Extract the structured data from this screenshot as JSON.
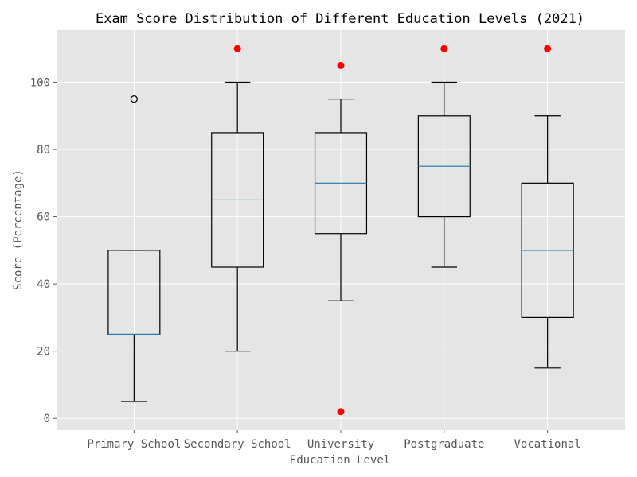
{
  "chart_data": {
    "type": "box",
    "title": "Exam Score Distribution of Different Education Levels (2021)",
    "xlabel": "Education Level",
    "ylabel": "Score (Percentage)",
    "ylim": [
      -3.5,
      115.5
    ],
    "yticks": [
      0,
      20,
      40,
      60,
      80,
      100
    ],
    "grid": true,
    "colors": {
      "plot_bg": "#e5e5e5",
      "grid": "#ffffff",
      "box": "#000000",
      "median": "#1f77b4",
      "outlier_red": "#ff0000"
    },
    "categories": [
      "Primary School",
      "Secondary School",
      "University",
      "Postgraduate",
      "Vocational"
    ],
    "boxes": [
      {
        "category": "Primary School",
        "whisker_low": 5,
        "q1": 25,
        "median": 25,
        "q3": 50,
        "whisker_high": 50,
        "outliers": [
          {
            "value": 95,
            "style": "hollow"
          }
        ]
      },
      {
        "category": "Secondary School",
        "whisker_low": 20,
        "q1": 45,
        "median": 65,
        "q3": 85,
        "whisker_high": 100,
        "outliers": [
          {
            "value": 110,
            "style": "red"
          }
        ]
      },
      {
        "category": "University",
        "whisker_low": 35,
        "q1": 55,
        "median": 70,
        "q3": 85,
        "whisker_high": 95,
        "outliers": [
          {
            "value": 105,
            "style": "red"
          },
          {
            "value": 2,
            "style": "red"
          }
        ]
      },
      {
        "category": "Postgraduate",
        "whisker_low": 45,
        "q1": 60,
        "median": 75,
        "q3": 90,
        "whisker_high": 100,
        "outliers": [
          {
            "value": 110,
            "style": "red"
          }
        ]
      },
      {
        "category": "Vocational",
        "whisker_low": 15,
        "q1": 30,
        "median": 50,
        "q3": 70,
        "whisker_high": 90,
        "outliers": [
          {
            "value": 110,
            "style": "red"
          }
        ]
      }
    ]
  }
}
